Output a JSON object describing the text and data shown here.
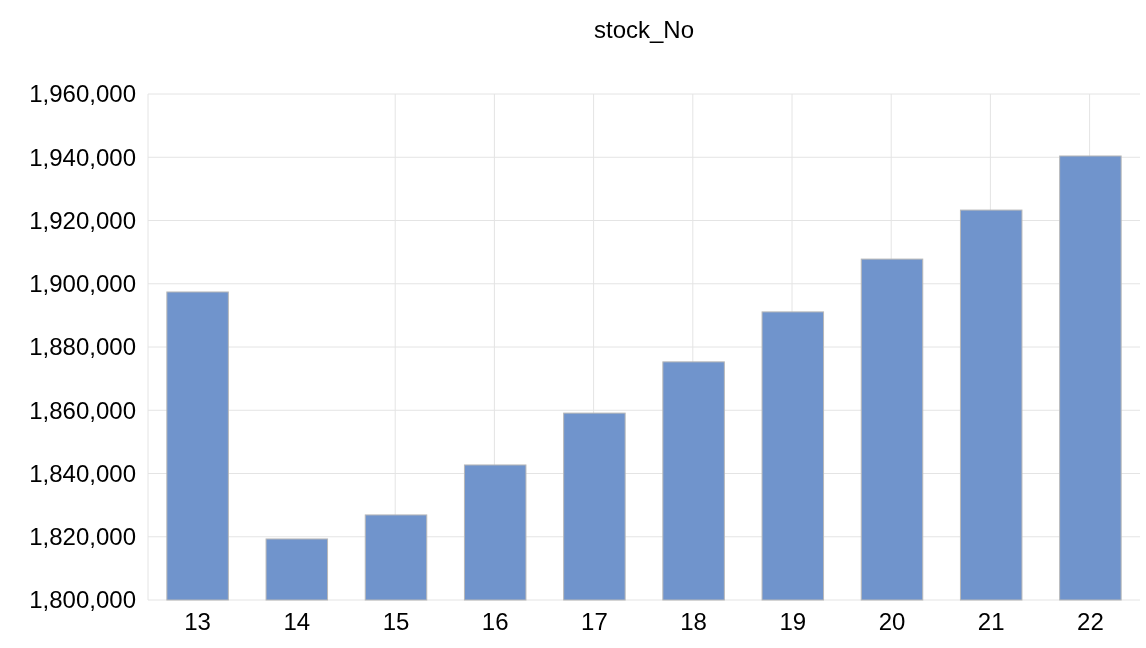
{
  "chart_data": {
    "type": "bar",
    "title": "stock_No",
    "categories": [
      "13",
      "14",
      "15",
      "16",
      "17",
      "18",
      "19",
      "20",
      "21",
      "22"
    ],
    "values": [
      1897400,
      1819300,
      1826900,
      1842700,
      1859100,
      1875300,
      1891100,
      1907800,
      1923300,
      1940400
    ],
    "color": "#7094cc",
    "ylim": [
      1800000,
      1960000
    ],
    "yticks": [
      {
        "value": 1800000,
        "label": "1,800,000"
      },
      {
        "value": 1820000,
        "label": "1,820,000"
      },
      {
        "value": 1840000,
        "label": "1,840,000"
      },
      {
        "value": 1860000,
        "label": "1,860,000"
      },
      {
        "value": 1880000,
        "label": "1,880,000"
      },
      {
        "value": 1900000,
        "label": "1,900,000"
      },
      {
        "value": 1920000,
        "label": "1,920,000"
      },
      {
        "value": 1940000,
        "label": "1,940,000"
      },
      {
        "value": 1960000,
        "label": "1,960,000"
      }
    ],
    "grid": true
  }
}
